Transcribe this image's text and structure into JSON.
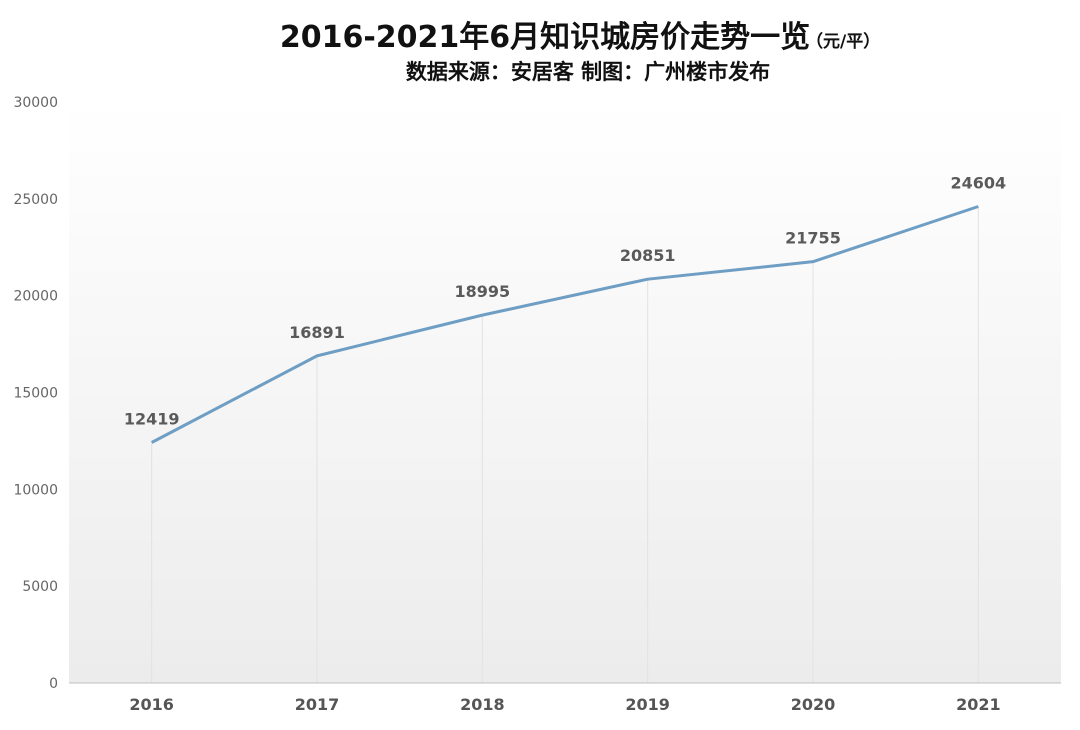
{
  "chart_data": {
    "type": "line",
    "title": "2016-2021年6月知识城房价走势一览",
    "title_unit": "（元/平）",
    "subtitle": "数据来源：安居客  制图：广州楼市发布",
    "categories": [
      "2016",
      "2017",
      "2018",
      "2019",
      "2020",
      "2021"
    ],
    "values": [
      12419,
      16891,
      18995,
      20851,
      21755,
      24604
    ],
    "data_labels": [
      "12419",
      "16891",
      "18995",
      "20851",
      "21755",
      "24604"
    ],
    "y_ticks": [
      "0",
      "5000",
      "10000",
      "15000",
      "20000",
      "25000",
      "30000"
    ],
    "ylim": [
      0,
      30000
    ],
    "xlabel": "",
    "ylabel": "",
    "grid": "vertical",
    "legend": "none",
    "line_color": "#6f9ec4",
    "background_gradient": [
      "#ffffff",
      "#ececec"
    ]
  }
}
